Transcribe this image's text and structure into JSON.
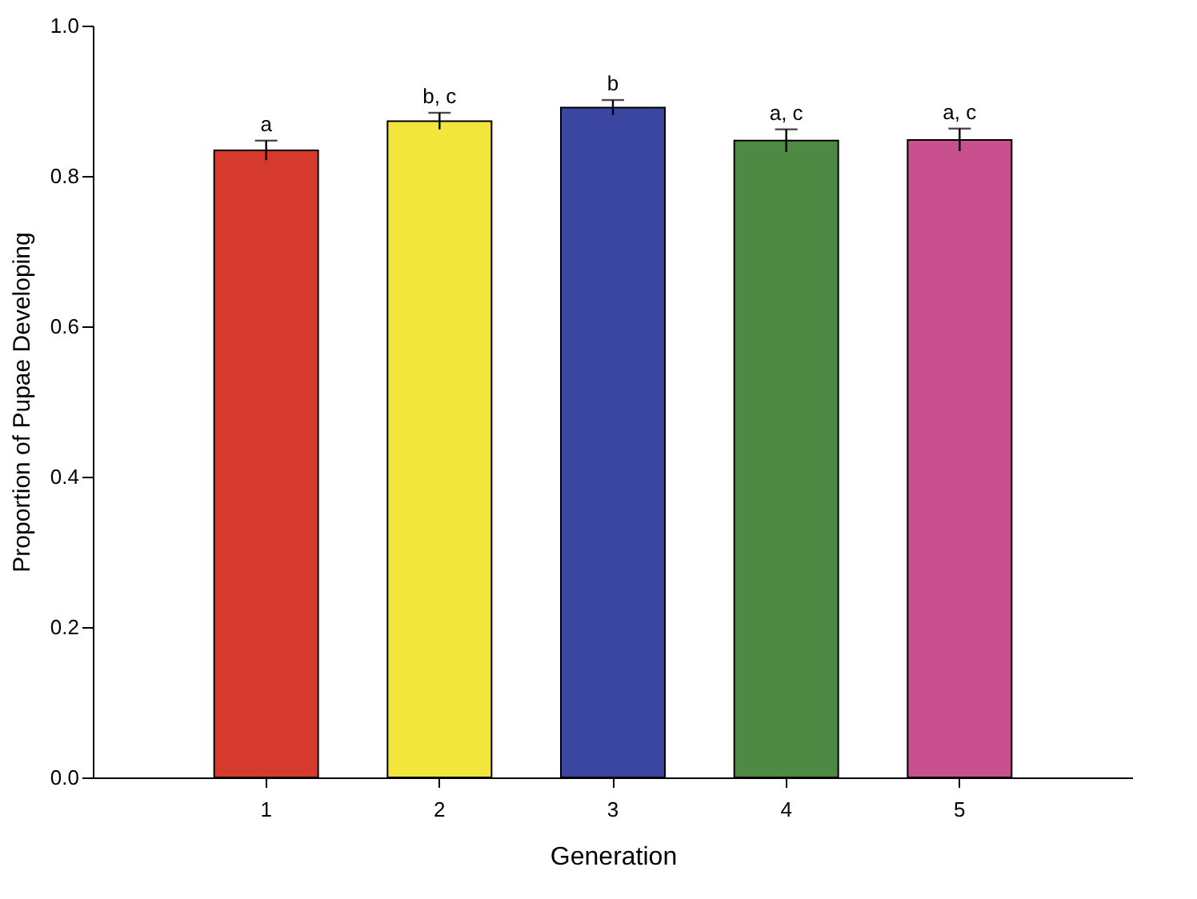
{
  "chart_data": {
    "type": "bar",
    "xlabel": "Generation",
    "ylabel": "Proportion of Pupae Developing",
    "categories": [
      "1",
      "2",
      "3",
      "4",
      "5"
    ],
    "values": [
      0.834,
      0.873,
      0.891,
      0.847,
      0.848
    ],
    "errors": [
      0.013,
      0.011,
      0.01,
      0.015,
      0.015
    ],
    "colors": [
      "#d63a2e",
      "#f2e53c",
      "#3a46a0",
      "#4f8a45",
      "#c8508f"
    ],
    "ylim": [
      0,
      1
    ],
    "yticks": [
      {
        "value": 0,
        "label": "0.0"
      },
      {
        "value": 0.2,
        "label": "0.2"
      },
      {
        "value": 0.4,
        "label": "0.4"
      },
      {
        "value": 0.6,
        "label": "0.6"
      },
      {
        "value": 0.8,
        "label": "0.8"
      },
      {
        "value": 1,
        "label": "1.0"
      }
    ],
    "grid": false,
    "annotations": [
      {
        "text": "a",
        "x": "1",
        "y": 0.847
      },
      {
        "text": "b, c",
        "x": "2",
        "y": 0.884
      },
      {
        "text": "b",
        "x": "3",
        "y": 0.901
      },
      {
        "text": "a, c",
        "x": "4",
        "y": 0.862
      },
      {
        "text": "a, c",
        "x": "5",
        "y": 0.863
      }
    ]
  }
}
